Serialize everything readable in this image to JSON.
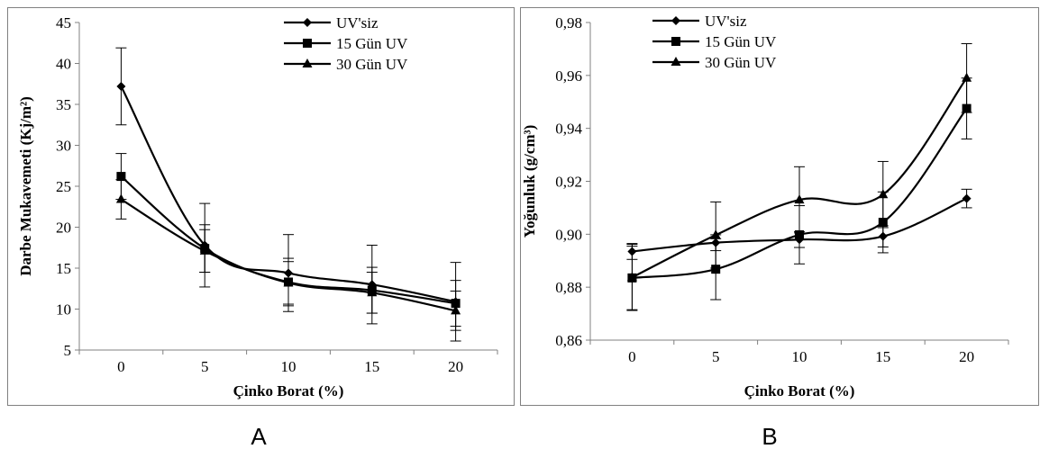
{
  "chart_data": [
    {
      "type": "line",
      "title": "",
      "xlabel": "Çinko Borat (%)",
      "ylabel": "Darbe Mukavemeti (Kj/m²)",
      "categories": [
        "0",
        "5",
        "10",
        "15",
        "20"
      ],
      "xticks": [
        "0",
        "5",
        "10",
        "15",
        "20"
      ],
      "yticks": [
        "5",
        "10",
        "15",
        "20",
        "25",
        "30",
        "35",
        "40",
        "45"
      ],
      "ylim": [
        5,
        45
      ],
      "grid": false,
      "legend_position": "top-right",
      "series": [
        {
          "name": "UV'siz",
          "marker": "diamond",
          "values": [
            37.2,
            17.8,
            14.4,
            13.0,
            10.9
          ],
          "errors": [
            4.7,
            5.1,
            4.7,
            4.8,
            4.8
          ]
        },
        {
          "name": "15 Gün UV",
          "marker": "square",
          "values": [
            26.2,
            17.4,
            13.3,
            12.3,
            10.7
          ],
          "errors": [
            2.8,
            2.9,
            2.9,
            2.8,
            2.8
          ]
        },
        {
          "name": "30 Gün UV",
          "marker": "triangle",
          "values": [
            23.4,
            17.1,
            13.2,
            12.0,
            9.8
          ],
          "errors": [
            2.4,
            2.6,
            2.6,
            2.5,
            2.4
          ]
        }
      ]
    },
    {
      "type": "line",
      "title": "",
      "xlabel": "Çinko Borat (%)",
      "ylabel": "Yoğunluk (g/cm³)",
      "categories": [
        "0",
        "5",
        "10",
        "15",
        "20"
      ],
      "xticks": [
        "0",
        "5",
        "10",
        "15",
        "20"
      ],
      "yticks": [
        "0,86",
        "0,88",
        "0,90",
        "0,92",
        "0,94",
        "0,96",
        "0,98"
      ],
      "ylim": [
        0.86,
        0.98
      ],
      "grid": false,
      "legend_position": "top-left",
      "series": [
        {
          "name": "UV'siz",
          "marker": "diamond",
          "values": [
            0.8935,
            0.8968,
            0.898,
            0.8992,
            0.9135
          ],
          "errors": [
            0.003,
            0.003,
            0.003,
            0.004,
            0.0035
          ]
        },
        {
          "name": "15 Gün UV",
          "marker": "square",
          "values": [
            0.8835,
            0.8868,
            0.8998,
            0.9045,
            0.9475
          ],
          "errors": [
            0.012,
            0.0115,
            0.011,
            0.0115,
            0.0115
          ]
        },
        {
          "name": "30 Gün UV",
          "marker": "triangle",
          "values": [
            0.8837,
            0.8997,
            0.913,
            0.915,
            0.959
          ],
          "errors": [
            0.0125,
            0.0125,
            0.0125,
            0.0125,
            0.013
          ]
        }
      ]
    }
  ],
  "panel_labels": [
    "A",
    "B"
  ]
}
